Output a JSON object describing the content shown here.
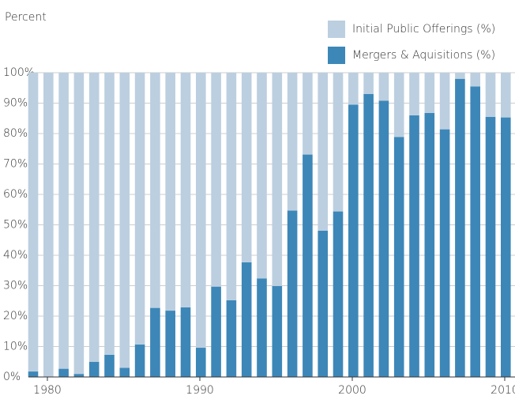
{
  "chart_data": {
    "type": "stacked_bar",
    "ylabel": "Percent",
    "x": [
      1980,
      1981,
      1982,
      1983,
      1984,
      1985,
      1986,
      1987,
      1988,
      1989,
      1990,
      1991,
      1992,
      1993,
      1994,
      1995,
      1996,
      1997,
      1998,
      1999,
      2000,
      2001,
      2002,
      2003,
      2004,
      2005,
      2006,
      2007,
      2008,
      2009,
      2010,
      2011
    ],
    "series": [
      {
        "name": "Mergers & Aquisitions (%)",
        "color": "#3d87b8",
        "values": [
          1.8,
          0,
          2.7,
          1.0,
          5.0,
          7.3,
          3.0,
          10.7,
          22.7,
          21.8,
          22.9,
          9.6,
          29.7,
          25.2,
          37.7,
          32.4,
          29.9,
          54.7,
          73.1,
          48.1,
          54.4,
          89.5,
          93.0,
          90.8,
          78.9,
          86.0,
          86.8,
          81.4,
          98.0,
          95.5,
          85.5,
          85.3
        ]
      },
      {
        "name": "Initial Public Offerings (%)",
        "color": "#bccfe0",
        "values": [
          98.2,
          100,
          97.3,
          99.0,
          95.0,
          92.7,
          97.0,
          89.3,
          77.3,
          78.2,
          77.1,
          90.4,
          70.3,
          74.8,
          62.3,
          67.6,
          70.1,
          45.3,
          26.9,
          51.9,
          45.6,
          10.5,
          7.0,
          9.2,
          21.1,
          14.0,
          13.2,
          18.6,
          2.0,
          4.5,
          14.5,
          14.7
        ]
      }
    ],
    "ylim": [
      0,
      100
    ],
    "yticks": [
      {
        "value": 0,
        "label": "0%"
      },
      {
        "value": 10,
        "label": "10%"
      },
      {
        "value": 20,
        "label": "20%"
      },
      {
        "value": 30,
        "label": "30%"
      },
      {
        "value": 40,
        "label": "40%"
      },
      {
        "value": 50,
        "label": "50%"
      },
      {
        "value": 60,
        "label": "60%"
      },
      {
        "value": 70,
        "label": "70%"
      },
      {
        "value": 80,
        "label": "80%"
      },
      {
        "value": 90,
        "label": "90%"
      },
      {
        "value": 100,
        "label": "100%"
      }
    ],
    "xticks": [
      1980,
      1990,
      2000,
      2010
    ],
    "grid": true
  }
}
